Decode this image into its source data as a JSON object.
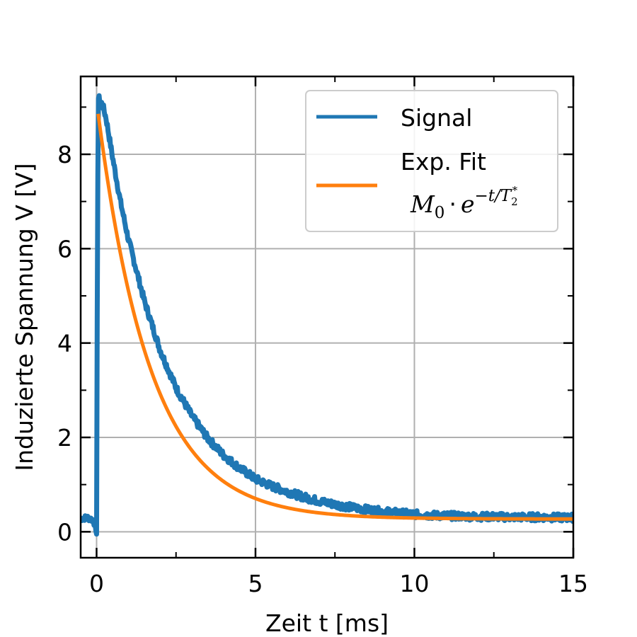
{
  "chart_data": {
    "type": "line",
    "title": "",
    "xlabel": "Zeit t [ms]",
    "ylabel": "Induzierte Spannung V [V]",
    "xlim": [
      -0.5,
      15
    ],
    "ylim": [
      -0.55,
      9.65
    ],
    "xticks": [
      0,
      5,
      10,
      15
    ],
    "xtick_labels": [
      "0",
      "5",
      "10",
      "15"
    ],
    "yticks": [
      0,
      2,
      4,
      6,
      8
    ],
    "ytick_labels": [
      "0",
      "2",
      "4",
      "6",
      "8"
    ],
    "grid": true,
    "legend_position": "top-right",
    "series": [
      {
        "name": "Signal",
        "color": "#1f77b4",
        "x": [
          -0.5,
          -0.3,
          -0.1,
          0.0,
          0.02,
          0.05,
          0.1,
          0.2,
          0.3,
          0.5,
          0.75,
          1.0,
          1.5,
          2.0,
          2.5,
          3.0,
          3.5,
          4.0,
          4.5,
          5.0,
          5.5,
          6.0,
          6.5,
          7.0,
          7.5,
          8.0,
          8.5,
          9.0,
          9.5,
          10.0,
          10.5,
          11.0,
          11.5,
          12.0,
          12.5,
          13.0,
          13.5,
          14.0,
          14.5,
          15.0
        ],
        "y": [
          0.28,
          0.3,
          0.25,
          -0.05,
          4.5,
          9.2,
          9.15,
          9.02,
          8.76,
          7.95,
          7.0,
          6.2,
          4.9,
          3.85,
          3.05,
          2.45,
          1.98,
          1.62,
          1.35,
          1.12,
          0.97,
          0.85,
          0.74,
          0.65,
          0.58,
          0.52,
          0.47,
          0.43,
          0.4,
          0.37,
          0.35,
          0.34,
          0.33,
          0.32,
          0.32,
          0.31,
          0.31,
          0.31,
          0.3,
          0.3
        ]
      },
      {
        "name": "Exp. Fit",
        "color": "#ff7f0e",
        "M0": 8.85,
        "T2_star_ms": 1.66,
        "offset": 0.27,
        "x_start": 0.05,
        "x_end": 15.0
      }
    ],
    "legend": {
      "signal_label": "Signal",
      "fit_label": "Exp. Fit",
      "fit_formula": {
        "base": "M",
        "base_sub": "0",
        "dot": "·",
        "e": "e",
        "exponent": "−t/T",
        "exponent_sub": "2",
        "exponent_sup": "*"
      }
    }
  }
}
